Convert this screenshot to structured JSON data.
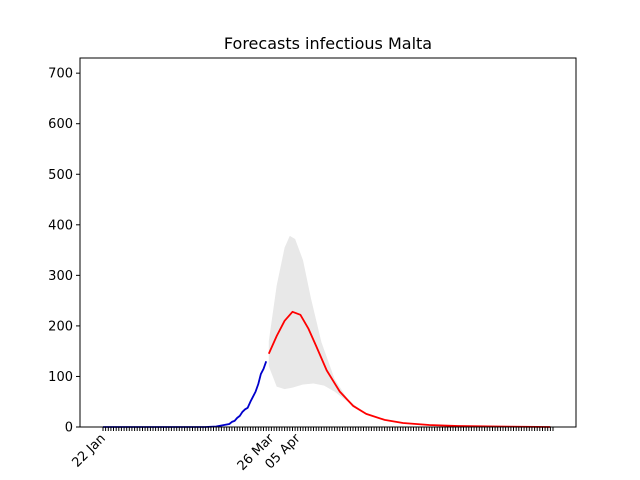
{
  "chart_data": {
    "type": "line",
    "title": "Forecasts infectious Malta",
    "xlabel": "",
    "ylabel": "",
    "xlim": [
      "2020-01-22",
      "2020-07-11"
    ],
    "ylim": [
      0,
      730
    ],
    "grid": false,
    "legend": "none",
    "x_tick_labels": [
      {
        "date": "2020-01-22",
        "label": "22 Jan"
      },
      {
        "date": "2020-03-26",
        "label": "26 Mar"
      },
      {
        "date": "2020-04-05",
        "label": "05 Apr"
      }
    ],
    "y_ticks": [
      0,
      100,
      200,
      300,
      400,
      500,
      600,
      700
    ],
    "colors": {
      "observed": "#0000cc",
      "forecast": "#ff0000",
      "band": "#e8e8e8"
    },
    "series": [
      {
        "role": "observed",
        "x": [
          "2020-01-22",
          "2020-02-01",
          "2020-02-15",
          "2020-03-01",
          "2020-03-05",
          "2020-03-07",
          "2020-03-08",
          "2020-03-09",
          "2020-03-10",
          "2020-03-11",
          "2020-03-12",
          "2020-03-13",
          "2020-03-14",
          "2020-03-15",
          "2020-03-16",
          "2020-03-17",
          "2020-03-18",
          "2020-03-19",
          "2020-03-20",
          "2020-03-21",
          "2020-03-22",
          "2020-03-23",
          "2020-03-24"
        ],
        "values": [
          0,
          0,
          0,
          0,
          1,
          3,
          4,
          5,
          6,
          10,
          12,
          18,
          22,
          30,
          35,
          38,
          50,
          60,
          70,
          85,
          105,
          115,
          130
        ]
      },
      {
        "role": "forecast",
        "x": [
          "2020-03-25",
          "2020-03-28",
          "2020-03-31",
          "2020-04-03",
          "2020-04-06",
          "2020-04-09",
          "2020-04-12",
          "2020-04-16",
          "2020-04-21",
          "2020-04-26",
          "2020-05-01",
          "2020-05-08",
          "2020-05-15",
          "2020-05-25",
          "2020-06-05",
          "2020-06-20",
          "2020-07-10"
        ],
        "values": [
          145,
          180,
          210,
          228,
          222,
          195,
          160,
          112,
          70,
          42,
          26,
          14,
          8,
          4,
          2,
          1,
          0
        ]
      },
      {
        "role": "band_upper",
        "x": [
          "2020-03-25",
          "2020-03-28",
          "2020-03-31",
          "2020-04-02",
          "2020-04-04",
          "2020-04-07",
          "2020-04-10",
          "2020-04-14",
          "2020-04-19",
          "2020-04-24",
          "2020-04-29",
          "2020-05-05",
          "2020-05-12",
          "2020-05-20",
          "2020-06-01"
        ],
        "values": [
          170,
          280,
          355,
          378,
          372,
          330,
          255,
          168,
          95,
          55,
          33,
          18,
          9,
          4,
          1
        ]
      },
      {
        "role": "band_lower",
        "x": [
          "2020-03-25",
          "2020-03-28",
          "2020-03-31",
          "2020-04-03",
          "2020-04-07",
          "2020-04-11",
          "2020-04-15",
          "2020-04-19",
          "2020-04-24",
          "2020-04-29",
          "2020-05-05",
          "2020-05-12",
          "2020-05-20",
          "2020-06-01"
        ],
        "values": [
          120,
          80,
          75,
          78,
          84,
          86,
          82,
          70,
          50,
          32,
          18,
          9,
          4,
          1
        ]
      }
    ]
  }
}
